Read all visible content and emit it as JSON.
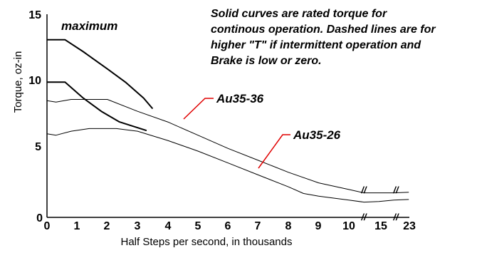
{
  "chart_data": {
    "type": "line",
    "xlabel": "Half Steps per second, in thousands",
    "ylabel": "Torque, oz-in",
    "xlim": [
      0,
      23
    ],
    "ylim": [
      0,
      15
    ],
    "x_ticks": [
      "0",
      "1",
      "2",
      "3",
      "4",
      "5",
      "6",
      "7",
      "8",
      "9",
      "10",
      "15",
      "23"
    ],
    "y_ticks": [
      "0",
      "5",
      "10",
      "15"
    ],
    "axis_break_marks": [
      "//",
      "//",
      "//",
      "//"
    ],
    "annotations": {
      "maximum": "maximum",
      "note_lines": [
        "Solid curves are rated torque for",
        "continous operation.  Dashed lines are for",
        "higher \"T\" if intermittent operation and",
        "Brake is low or zero."
      ],
      "label_au3536": "Au35-36",
      "label_au3526": "Au35-26"
    },
    "series": [
      {
        "name": "Au35-36",
        "values": [
          [
            0,
            8.8
          ],
          [
            0.3,
            8.7
          ],
          [
            0.8,
            8.9
          ],
          [
            2,
            8.9
          ],
          [
            3,
            8.0
          ],
          [
            4,
            7.2
          ],
          [
            5,
            6.2
          ],
          [
            6,
            5.2
          ],
          [
            7,
            4.3
          ],
          [
            8,
            3.4
          ],
          [
            9,
            2.6
          ],
          [
            10,
            2.1
          ],
          [
            10.5,
            1.85
          ],
          [
            11,
            1.85
          ],
          [
            11.5,
            1.85
          ],
          [
            12,
            1.9
          ]
        ]
      },
      {
        "name": "Au35-26",
        "values": [
          [
            0,
            6.3
          ],
          [
            0.3,
            6.2
          ],
          [
            0.8,
            6.5
          ],
          [
            1.4,
            6.7
          ],
          [
            2.3,
            6.7
          ],
          [
            3,
            6.5
          ],
          [
            4,
            5.8
          ],
          [
            5,
            5.0
          ],
          [
            6,
            4.1
          ],
          [
            7,
            3.2
          ],
          [
            8,
            2.3
          ],
          [
            8.5,
            1.8
          ],
          [
            9,
            1.6
          ],
          [
            10,
            1.3
          ],
          [
            10.5,
            1.15
          ],
          [
            11,
            1.2
          ],
          [
            11.5,
            1.3
          ],
          [
            12,
            1.35
          ]
        ]
      },
      {
        "name": "Au35-36 maximum",
        "values": [
          [
            0,
            13.4
          ],
          [
            0.6,
            13.4
          ],
          [
            1.2,
            12.5
          ],
          [
            2,
            11.2
          ],
          [
            2.6,
            10.2
          ],
          [
            3.2,
            9.0
          ],
          [
            3.5,
            8.2
          ]
        ]
      },
      {
        "name": "Au35-26 maximum",
        "values": [
          [
            0,
            10.2
          ],
          [
            0.6,
            10.2
          ],
          [
            1.2,
            9.0
          ],
          [
            1.8,
            8.0
          ],
          [
            2.4,
            7.2
          ],
          [
            3.3,
            6.55
          ]
        ]
      }
    ],
    "grid": false,
    "colors": {
      "axis": "#000000",
      "curve": "#000000",
      "leader": "#e00000"
    }
  }
}
